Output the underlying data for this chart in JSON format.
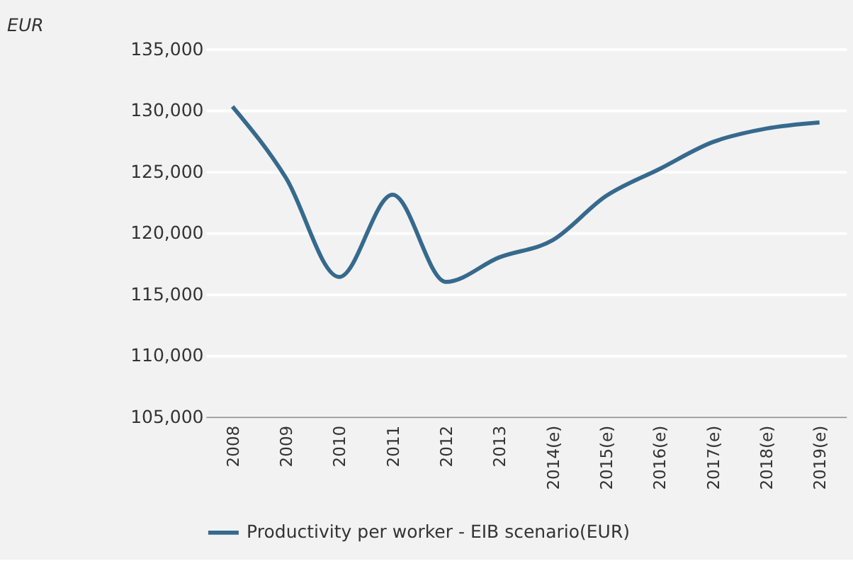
{
  "chart_data": {
    "type": "line",
    "ylabel": "EUR",
    "categories": [
      "2008",
      "2009",
      "2010",
      "2011",
      "2012",
      "2013",
      "2014(e)",
      "2015(e)",
      "2016(e)",
      "2017(e)",
      "2018(e)",
      "2019(e)"
    ],
    "series": [
      {
        "name": "Productivity per worker - EIB scenario(EUR)",
        "color": "#366a8d",
        "values": [
          130300,
          124500,
          116400,
          123100,
          116000,
          118000,
          119400,
          123000,
          125200,
          127400,
          128500,
          129000
        ]
      }
    ],
    "ylim": [
      105000,
      135000
    ],
    "yticks": [
      {
        "value": 105000,
        "label": "105,000"
      },
      {
        "value": 110000,
        "label": "110,000"
      },
      {
        "value": 115000,
        "label": "115,000"
      },
      {
        "value": 120000,
        "label": "120,000"
      },
      {
        "value": 125000,
        "label": "125,000"
      },
      {
        "value": 130000,
        "label": "130,000"
      },
      {
        "value": 135000,
        "label": "135,000"
      }
    ],
    "grid": "y",
    "legend": "bottom",
    "marker": "none",
    "line_style": "solid"
  }
}
